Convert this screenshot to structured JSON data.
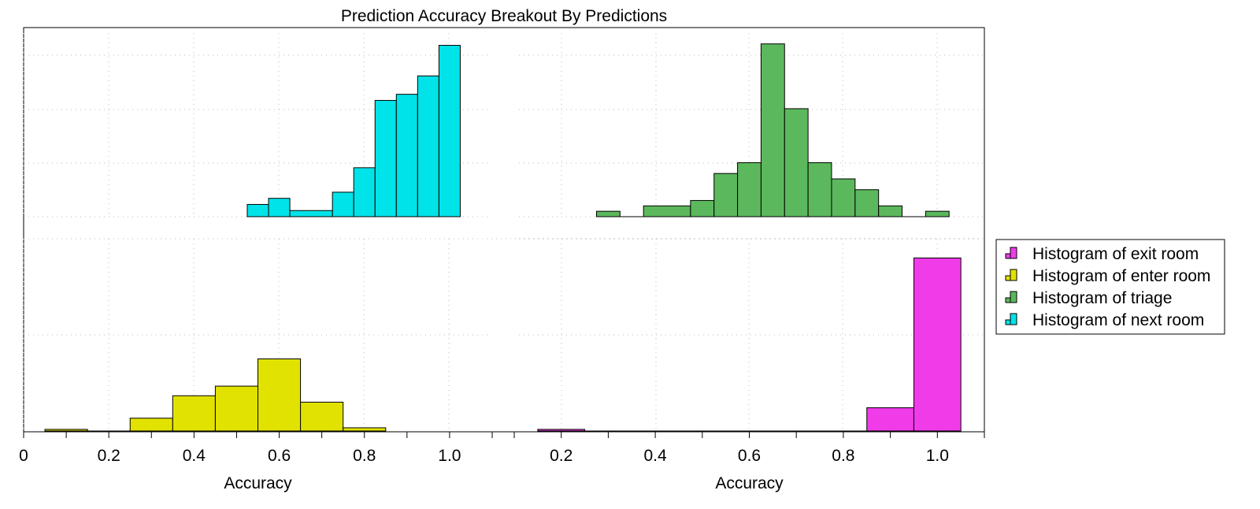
{
  "title": "Prediction Accuracy Breakout By Predictions",
  "chart_data": [
    {
      "type": "bar",
      "panel": "top-left",
      "name": "Histogram of next room",
      "color": "#00e3e8",
      "bin_width": 0.05,
      "bins": [
        {
          "x0": 0.525,
          "x1": 0.575,
          "value": 2.0
        },
        {
          "x0": 0.575,
          "x1": 0.625,
          "value": 3.0
        },
        {
          "x0": 0.625,
          "x1": 0.725,
          "value": 1.0
        },
        {
          "x0": 0.725,
          "x1": 0.775,
          "value": 4.0
        },
        {
          "x0": 0.775,
          "x1": 0.825,
          "value": 8.0
        },
        {
          "x0": 0.825,
          "x1": 0.875,
          "value": 19.0
        },
        {
          "x0": 0.875,
          "x1": 0.925,
          "value": 20.0
        },
        {
          "x0": 0.925,
          "x1": 0.975,
          "value": 23.0
        },
        {
          "x0": 0.975,
          "x1": 1.025,
          "value": 28.0
        }
      ],
      "xlim": [
        0.0,
        1.1
      ],
      "ylim": [
        -4,
        30
      ]
    },
    {
      "type": "bar",
      "panel": "top-right",
      "name": "Histogram of triage",
      "color": "#5cb85c",
      "bin_width": 0.05,
      "bins": [
        {
          "x0": 0.275,
          "x1": 0.325,
          "value": 1.0
        },
        {
          "x0": 0.325,
          "x1": 0.375,
          "value": 0.0
        },
        {
          "x0": 0.375,
          "x1": 0.475,
          "value": 2.0
        },
        {
          "x0": 0.475,
          "x1": 0.525,
          "value": 3.0
        },
        {
          "x0": 0.525,
          "x1": 0.575,
          "value": 8.0
        },
        {
          "x0": 0.575,
          "x1": 0.625,
          "value": 10.0
        },
        {
          "x0": 0.625,
          "x1": 0.675,
          "value": 32.0
        },
        {
          "x0": 0.675,
          "x1": 0.725,
          "value": 20.0
        },
        {
          "x0": 0.725,
          "x1": 0.775,
          "value": 10.0
        },
        {
          "x0": 0.775,
          "x1": 0.825,
          "value": 7.0
        },
        {
          "x0": 0.825,
          "x1": 0.875,
          "value": 5.0
        },
        {
          "x0": 0.875,
          "x1": 0.925,
          "value": 2.0
        },
        {
          "x0": 0.925,
          "x1": 0.975,
          "value": 0.0
        },
        {
          "x0": 0.975,
          "x1": 1.025,
          "value": 1.0
        }
      ],
      "xlim": [
        0.1,
        1.1
      ],
      "ylim": [
        -4,
        34
      ]
    },
    {
      "type": "bar",
      "panel": "bottom-left",
      "name": "Histogram of enter room",
      "color": "#e2e200",
      "bin_width": 0.1,
      "bins": [
        {
          "x0": 0.05,
          "x1": 0.15,
          "value": 0.2
        },
        {
          "x0": 0.15,
          "x1": 0.25,
          "value": 0.0
        },
        {
          "x0": 0.25,
          "x1": 0.35,
          "value": 1.6
        },
        {
          "x0": 0.35,
          "x1": 0.45,
          "value": 4.4
        },
        {
          "x0": 0.45,
          "x1": 0.55,
          "value": 5.6
        },
        {
          "x0": 0.55,
          "x1": 0.65,
          "value": 9.0
        },
        {
          "x0": 0.65,
          "x1": 0.75,
          "value": 3.6
        },
        {
          "x0": 0.75,
          "x1": 0.85,
          "value": 0.4
        }
      ],
      "xlim": [
        0.0,
        1.1
      ],
      "xticks": [
        "0",
        "0.2",
        "0.4",
        "0.6",
        "0.8",
        "1.0"
      ],
      "xlabel": "Accuracy",
      "ylim": [
        0,
        24
      ]
    },
    {
      "type": "bar",
      "panel": "bottom-right",
      "name": "Histogram of exit room",
      "color": "#f03ce8",
      "bin_width": 0.1,
      "bins": [
        {
          "x0": 0.15,
          "x1": 0.25,
          "value": 0.2
        },
        {
          "x0": 0.25,
          "x1": 0.85,
          "value": 0.0
        },
        {
          "x0": 0.85,
          "x1": 0.95,
          "value": 2.9
        },
        {
          "x0": 0.95,
          "x1": 1.05,
          "value": 21.6
        }
      ],
      "xlim": [
        0.1,
        1.1
      ],
      "xticks": [
        "0.2",
        "0.4",
        "0.6",
        "0.8",
        "1.0"
      ],
      "xlabel": "Accuracy",
      "ylim": [
        0,
        24
      ]
    }
  ],
  "legend": {
    "placement": "right",
    "items": [
      {
        "label": "Histogram of exit room",
        "color": "#f03ce8"
      },
      {
        "label": "Histogram of enter room",
        "color": "#e2e200"
      },
      {
        "label": "Histogram of triage",
        "color": "#5cb85c"
      },
      {
        "label": "Histogram of next room",
        "color": "#00e3e8"
      }
    ]
  },
  "grid": true
}
